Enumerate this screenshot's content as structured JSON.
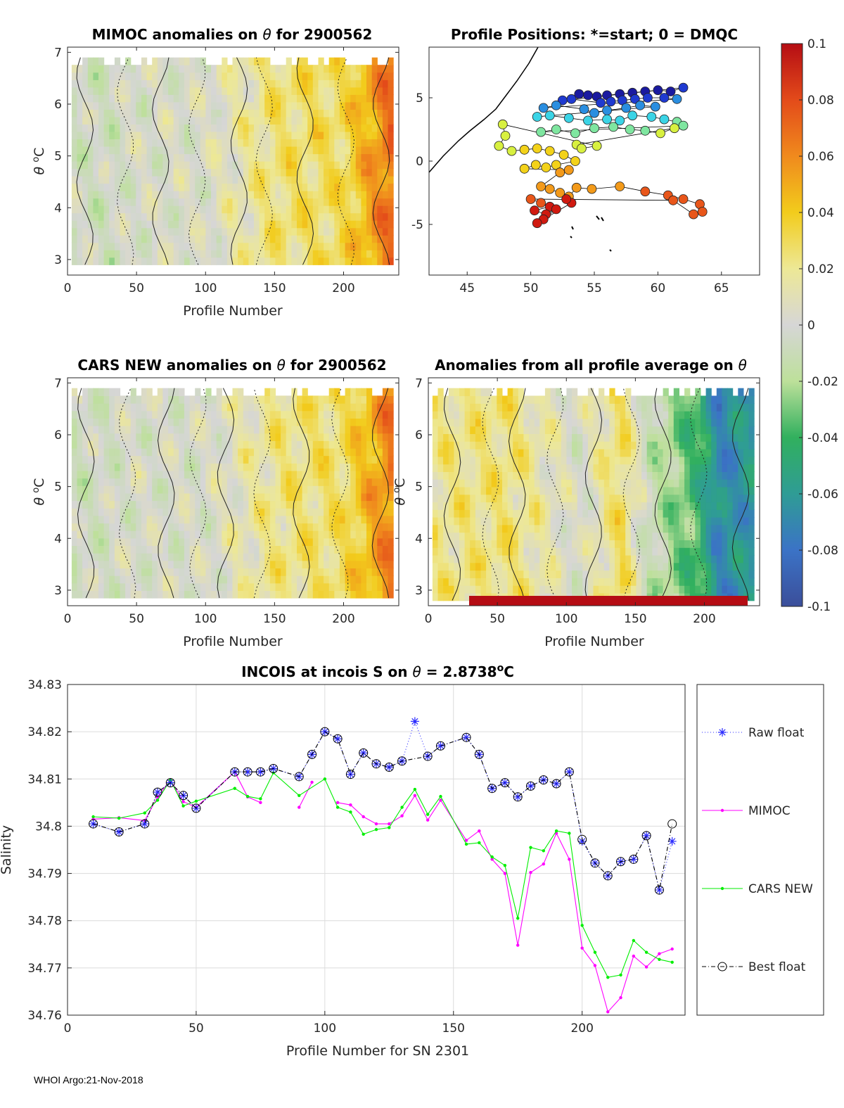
{
  "footer": "WHOI Argo:21-Nov-2018",
  "colors": {
    "raw": "#2a2aff",
    "mimoc": "#ff00ff",
    "cars": "#00ee00",
    "best": "#000000",
    "axis": "#262626",
    "grid": "#dcdcdc"
  },
  "chart_data": [
    {
      "type": "heatmap",
      "id": "mimoc",
      "title_parts": [
        "MIMOC anomalies on ",
        "θ",
        "  for 2900562"
      ],
      "xlabel": "Profile Number",
      "ylabel_parts": [
        "θ",
        " ",
        "o",
        "C"
      ],
      "xlim": [
        0,
        240
      ],
      "ylim": [
        2.7,
        7.1
      ],
      "xticks": [
        "0",
        "50",
        "100",
        "150",
        "200"
      ],
      "yticks": [
        "3",
        "4",
        "5",
        "6",
        "7"
      ],
      "data_extent": [
        3,
        236
      ],
      "theta_range": [
        2.9,
        6.9
      ],
      "anomaly_trend": [
        [
          3,
          -0.004
        ],
        [
          30,
          -0.006
        ],
        [
          45,
          0.0
        ],
        [
          100,
          0.002
        ],
        [
          150,
          0.025
        ],
        [
          200,
          0.03
        ],
        [
          236,
          0.07
        ]
      ]
    },
    {
      "type": "scatter",
      "id": "positions",
      "title": "Profile Positions: *=start; 0 = DMQC",
      "xlim": [
        42,
        68
      ],
      "ylim": [
        -9,
        9
      ],
      "xticks": [
        "45",
        "50",
        "55",
        "60",
        "65"
      ],
      "yticks": [
        "5",
        "0",
        "-5"
      ],
      "points": [
        [
          53.8,
          5.3
        ],
        [
          54.5,
          5.2
        ],
        [
          55.2,
          5.1
        ],
        [
          56.0,
          5.2
        ],
        [
          57.0,
          5.3
        ],
        [
          58.0,
          5.4
        ],
        [
          59.0,
          5.5
        ],
        [
          60.0,
          5.6
        ],
        [
          61.0,
          5.5
        ],
        [
          62.0,
          5.8
        ],
        [
          52.5,
          4.8
        ],
        [
          53.2,
          4.9
        ],
        [
          55.5,
          4.6
        ],
        [
          56.3,
          4.7
        ],
        [
          57.2,
          4.8
        ],
        [
          58.2,
          4.9
        ],
        [
          59.2,
          5.0
        ],
        [
          60.5,
          5.0
        ],
        [
          61.5,
          4.9
        ],
        [
          51.0,
          4.2
        ],
        [
          52.0,
          4.4
        ],
        [
          54.2,
          4.1
        ],
        [
          55.0,
          3.8
        ],
        [
          56.0,
          4.0
        ],
        [
          57.5,
          4.2
        ],
        [
          58.6,
          4.4
        ],
        [
          59.8,
          4.3
        ],
        [
          50.5,
          3.5
        ],
        [
          51.5,
          3.6
        ],
        [
          53.0,
          3.4
        ],
        [
          54.5,
          3.2
        ],
        [
          56.0,
          3.3
        ],
        [
          57.0,
          3.2
        ],
        [
          58.0,
          3.6
        ],
        [
          59.5,
          3.5
        ],
        [
          60.5,
          3.3
        ],
        [
          61.5,
          3.1
        ],
        [
          62.0,
          2.8
        ],
        [
          50.8,
          2.3
        ],
        [
          52.0,
          2.5
        ],
        [
          53.5,
          2.2
        ],
        [
          55.0,
          2.6
        ],
        [
          56.5,
          2.7
        ],
        [
          57.8,
          2.5
        ],
        [
          59.0,
          2.4
        ],
        [
          60.2,
          2.2
        ],
        [
          61.3,
          2.6
        ],
        [
          53.6,
          1.3
        ],
        [
          54.0,
          1.0
        ],
        [
          55.2,
          1.2
        ],
        [
          47.8,
          2.9
        ],
        [
          48.0,
          2.0
        ],
        [
          47.5,
          1.2
        ],
        [
          48.5,
          0.8
        ],
        [
          49.5,
          0.9
        ],
        [
          50.5,
          1.0
        ],
        [
          51.5,
          0.8
        ],
        [
          52.6,
          0.5
        ],
        [
          53.5,
          0.0
        ],
        [
          52.0,
          -0.3
        ],
        [
          51.2,
          -0.5
        ],
        [
          50.4,
          -0.3
        ],
        [
          49.5,
          -0.6
        ],
        [
          53.0,
          -0.7
        ],
        [
          52.3,
          -0.9
        ],
        [
          50.8,
          -2.0
        ],
        [
          51.5,
          -2.2
        ],
        [
          52.3,
          -2.5
        ],
        [
          53.0,
          -2.8
        ],
        [
          53.6,
          -2.1
        ],
        [
          54.8,
          -2.2
        ],
        [
          57.0,
          -2.0
        ],
        [
          59.0,
          -2.4
        ],
        [
          60.8,
          -2.7
        ],
        [
          62.0,
          -3.0
        ],
        [
          63.3,
          -3.4
        ],
        [
          63.5,
          -4.0
        ],
        [
          62.8,
          -4.2
        ],
        [
          61.2,
          -3.1
        ],
        [
          50.0,
          -3.0
        ],
        [
          50.8,
          -3.3
        ],
        [
          51.5,
          -3.6
        ],
        [
          50.3,
          -3.9
        ],
        [
          51.2,
          -4.2
        ],
        [
          52.0,
          -3.8
        ],
        [
          51.0,
          -4.6
        ],
        [
          50.5,
          -4.9
        ],
        [
          53.2,
          -3.3
        ],
        [
          52.8,
          -3.0
        ]
      ]
    },
    {
      "type": "heatmap",
      "id": "cars",
      "title_parts": [
        "CARS NEW anomalies on ",
        "θ",
        " for 2900562"
      ],
      "xlabel": "Profile Number",
      "ylabel_parts": [
        "θ",
        " ",
        "o",
        "C"
      ],
      "xlim": [
        0,
        240
      ],
      "ylim": [
        2.7,
        7.1
      ],
      "xticks": [
        "0",
        "50",
        "100",
        "150",
        "200"
      ],
      "yticks": [
        "3",
        "4",
        "5",
        "6",
        "7"
      ],
      "data_extent": [
        3,
        236
      ],
      "theta_range": [
        2.85,
        6.9
      ],
      "anomaly_trend": [
        [
          3,
          -0.006
        ],
        [
          30,
          -0.004
        ],
        [
          45,
          0.0
        ],
        [
          100,
          0.0
        ],
        [
          150,
          0.022
        ],
        [
          200,
          0.028
        ],
        [
          236,
          0.065
        ]
      ]
    },
    {
      "type": "heatmap",
      "id": "allavg",
      "title_parts": [
        "Anomalies from all profile average on ",
        "θ"
      ],
      "xlabel": "Profile Number",
      "ylabel_parts": [
        "θ",
        " ",
        "o",
        "C"
      ],
      "xlim": [
        0,
        240
      ],
      "ylim": [
        2.7,
        7.1
      ],
      "xticks": [
        "0",
        "50",
        "100",
        "150",
        "200"
      ],
      "yticks": [
        "3",
        "4",
        "5",
        "6",
        "7"
      ],
      "data_extent": [
        3,
        236
      ],
      "theta_range": [
        2.8,
        6.9
      ],
      "anomaly_trend": [
        [
          3,
          0.02
        ],
        [
          60,
          0.025
        ],
        [
          110,
          0.0
        ],
        [
          140,
          0.03
        ],
        [
          160,
          -0.01
        ],
        [
          195,
          -0.04
        ],
        [
          210,
          -0.07
        ],
        [
          236,
          -0.06
        ]
      ]
    },
    {
      "type": "colorbar",
      "id": "colorbar",
      "range": [
        -0.1,
        0.1
      ],
      "ticks": [
        "0.1",
        "0.08",
        "0.06",
        "0.04",
        "0.02",
        "0",
        "-0.02",
        "-0.04",
        "-0.06",
        "-0.08",
        "-0.1"
      ]
    },
    {
      "type": "line",
      "id": "salinity",
      "title_parts": [
        "INCOIS at incois S on ",
        "θ",
        " = 2.8738",
        "o",
        "C"
      ],
      "xlabel": "Profile Number for SN 2301",
      "ylabel": "Salinity",
      "xlim": [
        0,
        240
      ],
      "ylim": [
        34.76,
        34.83
      ],
      "xticks": [
        "0",
        "50",
        "100",
        "150",
        "200"
      ],
      "yticks": [
        "34.76",
        "34.77",
        "34.78",
        "34.79",
        "34.8",
        "34.81",
        "34.82",
        "34.83"
      ],
      "series": [
        {
          "name": "Raw float",
          "marker": "star",
          "x": [
            10,
            20,
            30,
            35,
            40,
            45,
            50,
            65,
            70,
            75,
            80,
            90,
            95,
            100,
            105,
            110,
            115,
            120,
            125,
            130,
            135,
            140,
            145,
            155,
            160,
            165,
            170,
            175,
            180,
            185,
            190,
            195,
            200,
            205,
            210,
            215,
            220,
            225,
            230,
            235
          ],
          "y": [
            34.8005,
            34.7988,
            34.8005,
            34.8072,
            34.8092,
            34.8065,
            34.8038,
            34.8115,
            34.8115,
            34.8115,
            34.8122,
            34.8105,
            34.8152,
            34.82,
            34.8185,
            34.811,
            34.8155,
            34.8132,
            34.8125,
            34.8138,
            34.8222,
            34.8148,
            34.817,
            34.8188,
            34.8152,
            34.808,
            34.8092,
            34.8062,
            34.8085,
            34.8098,
            34.809,
            34.8115,
            34.7968,
            34.7922,
            34.7895,
            34.7925,
            34.793,
            34.798,
            34.7865,
            34.7968
          ]
        },
        {
          "name": "MIMOC",
          "marker": "dot",
          "x": [
            10,
            20,
            30,
            35,
            40,
            45,
            50,
            65,
            70,
            75,
            null,
            90,
            95,
            null,
            105,
            110,
            115,
            120,
            125,
            130,
            135,
            140,
            145,
            155,
            160,
            165,
            170,
            175,
            180,
            185,
            190,
            195,
            200,
            205,
            210,
            215,
            220,
            225,
            230,
            235
          ],
          "y": [
            34.8015,
            34.8018,
            34.8012,
            34.8062,
            34.8098,
            34.8052,
            34.804,
            34.8115,
            34.8062,
            34.805,
            null,
            34.804,
            34.8093,
            null,
            34.805,
            34.8045,
            34.802,
            34.8005,
            34.8005,
            34.8022,
            34.8065,
            34.8013,
            34.8055,
            34.797,
            34.799,
            34.793,
            34.79,
            34.7748,
            34.7902,
            34.792,
            34.7985,
            34.793,
            34.7742,
            34.7705,
            34.7607,
            34.7637,
            34.7725,
            34.7702,
            34.773,
            34.774
          ]
        },
        {
          "name": "CARS NEW",
          "marker": "dot",
          "x": [
            10,
            20,
            30,
            35,
            40,
            45,
            50,
            65,
            70,
            75,
            80,
            90,
            100,
            105,
            110,
            115,
            120,
            125,
            130,
            135,
            140,
            145,
            155,
            160,
            165,
            170,
            175,
            180,
            185,
            190,
            195,
            200,
            205,
            210,
            215,
            220,
            225,
            230,
            235
          ],
          "y": [
            34.802,
            34.8017,
            34.8028,
            34.8055,
            34.8098,
            34.8043,
            34.8053,
            34.808,
            34.8063,
            34.8058,
            34.8113,
            34.8065,
            34.81,
            34.804,
            34.803,
            34.7983,
            34.7993,
            34.7997,
            34.804,
            34.8078,
            34.8025,
            34.8063,
            34.7962,
            34.7965,
            34.7935,
            34.7917,
            34.7805,
            34.7955,
            34.7948,
            34.799,
            34.7985,
            34.779,
            34.7733,
            34.768,
            34.7685,
            34.7758,
            34.7733,
            34.7718,
            34.7712
          ]
        },
        {
          "name": "Best float",
          "marker": "circle",
          "x": [
            10,
            20,
            30,
            35,
            40,
            45,
            50,
            65,
            70,
            75,
            80,
            90,
            95,
            100,
            105,
            110,
            115,
            120,
            125,
            130,
            140,
            145,
            155,
            160,
            165,
            170,
            175,
            180,
            185,
            190,
            195,
            200,
            205,
            210,
            215,
            220,
            225,
            230,
            235
          ],
          "y": [
            34.8005,
            34.7988,
            34.8005,
            34.8072,
            34.8092,
            34.8065,
            34.8038,
            34.8115,
            34.8115,
            34.8115,
            34.8122,
            34.8105,
            34.8152,
            34.82,
            34.8185,
            34.811,
            34.8155,
            34.8132,
            34.8125,
            34.8138,
            34.8148,
            34.817,
            34.8188,
            34.8152,
            34.808,
            34.8092,
            34.8062,
            34.8085,
            34.8098,
            34.809,
            34.8115,
            34.7972,
            34.7922,
            34.7895,
            34.7925,
            34.793,
            34.798,
            34.7865,
            34.8005
          ]
        }
      ]
    }
  ]
}
